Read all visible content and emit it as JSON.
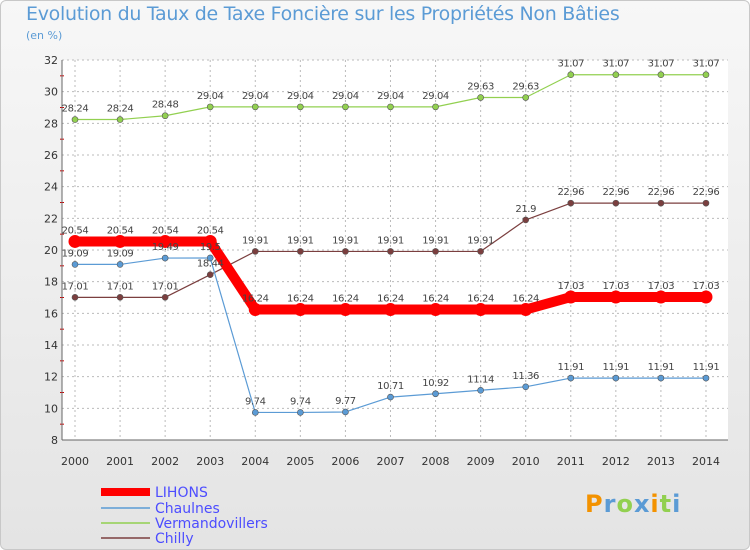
{
  "title": "Evolution du Taux de Taxe Foncière sur les Propriétés Non Bâties",
  "subtitle": "(en %)",
  "logo": [
    "P",
    "r",
    "o",
    "x",
    "i",
    "t",
    "i"
  ],
  "colors": {
    "lihons": "#ff0000",
    "chaulnes": "#5b9bd5",
    "vermandovillers": "#92d050",
    "chilly": "#7b3f3f",
    "grid": "#bbbbbb"
  },
  "chart_data": {
    "type": "line",
    "title": "Evolution du Taux de Taxe Foncière sur les Propriétés Non Bâties",
    "ylabel": "(en %)",
    "xlabel": "",
    "ylim": [
      8,
      32
    ],
    "yticks": [
      8,
      10,
      12,
      14,
      16,
      18,
      20,
      22,
      24,
      26,
      28,
      30,
      32
    ],
    "grid": true,
    "legend": "bottom-left",
    "x": [
      "2000",
      "2001",
      "2002",
      "2003",
      "2004",
      "2005",
      "2006",
      "2007",
      "2008",
      "2009",
      "2010",
      "2011",
      "2012",
      "2013",
      "2014"
    ],
    "series": [
      {
        "name": "LIHONS",
        "key": "lihons",
        "values": [
          20.54,
          20.54,
          20.54,
          20.54,
          16.24,
          16.24,
          16.24,
          16.24,
          16.24,
          16.24,
          16.24,
          17.03,
          17.03,
          17.03,
          17.03
        ]
      },
      {
        "name": "Chaulnes",
        "key": "chaulnes",
        "values": [
          19.09,
          19.09,
          19.49,
          19.5,
          9.74,
          9.74,
          9.77,
          10.71,
          10.92,
          11.14,
          11.36,
          11.91,
          11.91,
          11.91,
          11.91
        ]
      },
      {
        "name": "Vermandovillers",
        "key": "vermandovillers",
        "values": [
          28.24,
          28.24,
          28.48,
          29.04,
          29.04,
          29.04,
          29.04,
          29.04,
          29.04,
          29.63,
          29.63,
          31.07,
          31.07,
          31.07,
          31.07
        ]
      },
      {
        "name": "Chilly",
        "key": "chilly",
        "values": [
          17.01,
          17.01,
          17.01,
          18.44,
          19.91,
          19.91,
          19.91,
          19.91,
          19.91,
          19.91,
          21.9,
          22.96,
          22.96,
          22.96,
          22.96
        ]
      }
    ],
    "data_labels": {
      "lihons": [
        "20.54",
        "20.54",
        "20.54",
        "20.54",
        "16.24",
        "16.24",
        "16.24",
        "16.24",
        "16.24",
        "16.24",
        "16.24",
        "17.03",
        "17.03",
        "17.03",
        "17.03"
      ],
      "chaulnes": [
        "19.09",
        "19.09",
        "19.49",
        "19.5",
        "9.74",
        "9.74",
        "9.77",
        "10.71",
        "10.92",
        "11.14",
        "11.36",
        "11.91",
        "11.91",
        "11.91",
        "11.91"
      ],
      "vermandovillers": [
        "28.24",
        "28.24",
        "28.48",
        "29.04",
        "29.04",
        "29.04",
        "29.04",
        "29.04",
        "29.04",
        "29.63",
        "29.63",
        "31.07",
        "31.07",
        "31.07",
        "31.07"
      ],
      "chilly": [
        "17.01",
        "17.01",
        "17.01",
        "18.44",
        "19.91",
        "19.91",
        "19.91",
        "19.91",
        "19.91",
        "19.91",
        "21.9",
        "22.96",
        "22.96",
        "22.96",
        "22.96"
      ]
    }
  }
}
